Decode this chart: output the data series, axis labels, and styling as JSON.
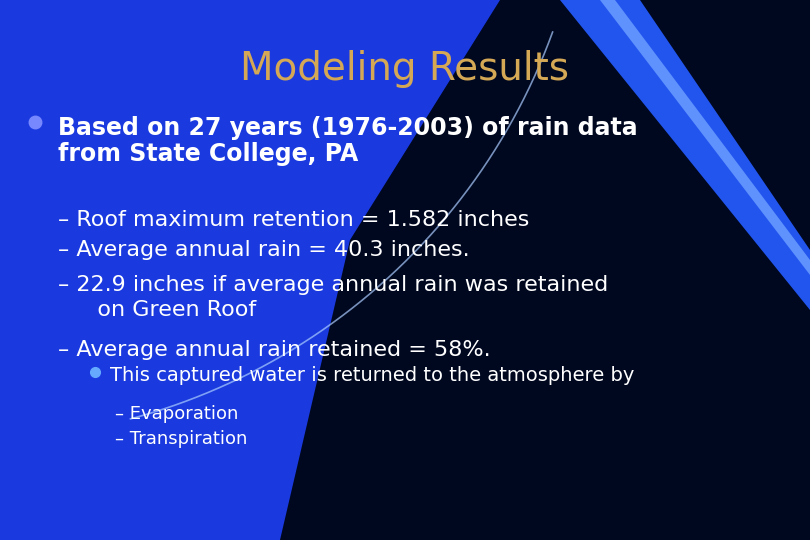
{
  "title": "Modeling Results",
  "title_color": "#D4A855",
  "title_fontsize": 28,
  "bg_blue": "#1a3adf",
  "bg_dark": "#000820",
  "text_color": "#ffffff",
  "bullet_color": "#7788ff",
  "bullet2_color": "#66aaff",
  "bullet1_line1": "Based on 27 years (1976-2003) of rain data",
  "bullet1_line2": "from State College, PA",
  "sub1": "– Roof maximum retention = 1.582 inches",
  "sub2": "– Average annual rain = 40.3 inches.",
  "sub3_line1": "– 22.9 inches if average annual rain was retained",
  "sub3_line2": "   on Green Roof",
  "sub4": "– Average annual rain retained = 58%.",
  "sub_bullet": "This captured water is returned to the atmosphere by",
  "sub_sub1": "– Evaporation",
  "sub_sub2": "– Transpiration",
  "body_fontsize": 17,
  "sub_fontsize": 16,
  "subsub_fontsize": 14,
  "subsubsub_fontsize": 13
}
